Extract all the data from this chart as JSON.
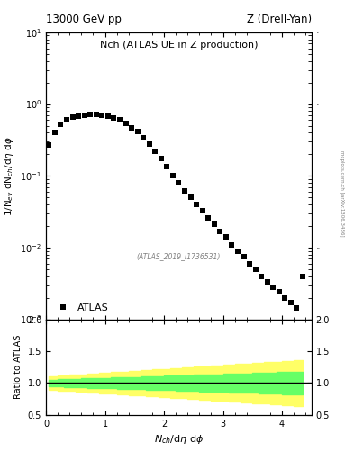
{
  "title_left": "13000 GeV pp",
  "title_right": "Z (Drell-Yan)",
  "plot_title": "Nch (ATLAS UE in Z production)",
  "xlabel": "$N_{ch}$/d$\\eta$ d$\\phi$",
  "ylabel_main": "1/N$_{ev}$ dN$_{ch}$/d$\\eta$ d$\\phi$",
  "ylabel_ratio": "Ratio to ATLAS",
  "watermark": "(ATLAS_2019_I1736531)",
  "side_text": "mcplots.cern.ch [arXiv:1306.3436]",
  "data_x": [
    0.05,
    0.15,
    0.25,
    0.35,
    0.45,
    0.55,
    0.65,
    0.75,
    0.85,
    0.95,
    1.05,
    1.15,
    1.25,
    1.35,
    1.45,
    1.55,
    1.65,
    1.75,
    1.85,
    1.95,
    2.05,
    2.15,
    2.25,
    2.35,
    2.45,
    2.55,
    2.65,
    2.75,
    2.85,
    2.95,
    3.05,
    3.15,
    3.25,
    3.35,
    3.45,
    3.55,
    3.65,
    3.75,
    3.85,
    3.95,
    4.05,
    4.15,
    4.25,
    4.35
  ],
  "data_y": [
    0.27,
    0.4,
    0.52,
    0.6,
    0.65,
    0.68,
    0.7,
    0.71,
    0.71,
    0.7,
    0.68,
    0.64,
    0.6,
    0.54,
    0.47,
    0.41,
    0.34,
    0.28,
    0.22,
    0.175,
    0.135,
    0.1,
    0.08,
    0.062,
    0.05,
    0.04,
    0.033,
    0.026,
    0.021,
    0.017,
    0.014,
    0.011,
    0.009,
    0.0075,
    0.006,
    0.005,
    0.004,
    0.0033,
    0.0028,
    0.0024,
    0.002,
    0.0017,
    0.00145,
    0.004
  ],
  "ylim_main": [
    0.001,
    10
  ],
  "xlim": [
    0,
    4.5
  ],
  "ratio_ylim": [
    0.5,
    2.0
  ],
  "ratio_yticks": [
    0.5,
    1.0,
    1.5,
    2.0
  ],
  "marker_color": "black",
  "marker_size": 4,
  "band_yellow": "#ffff66",
  "band_green": "#66ff66",
  "background_color": "white"
}
